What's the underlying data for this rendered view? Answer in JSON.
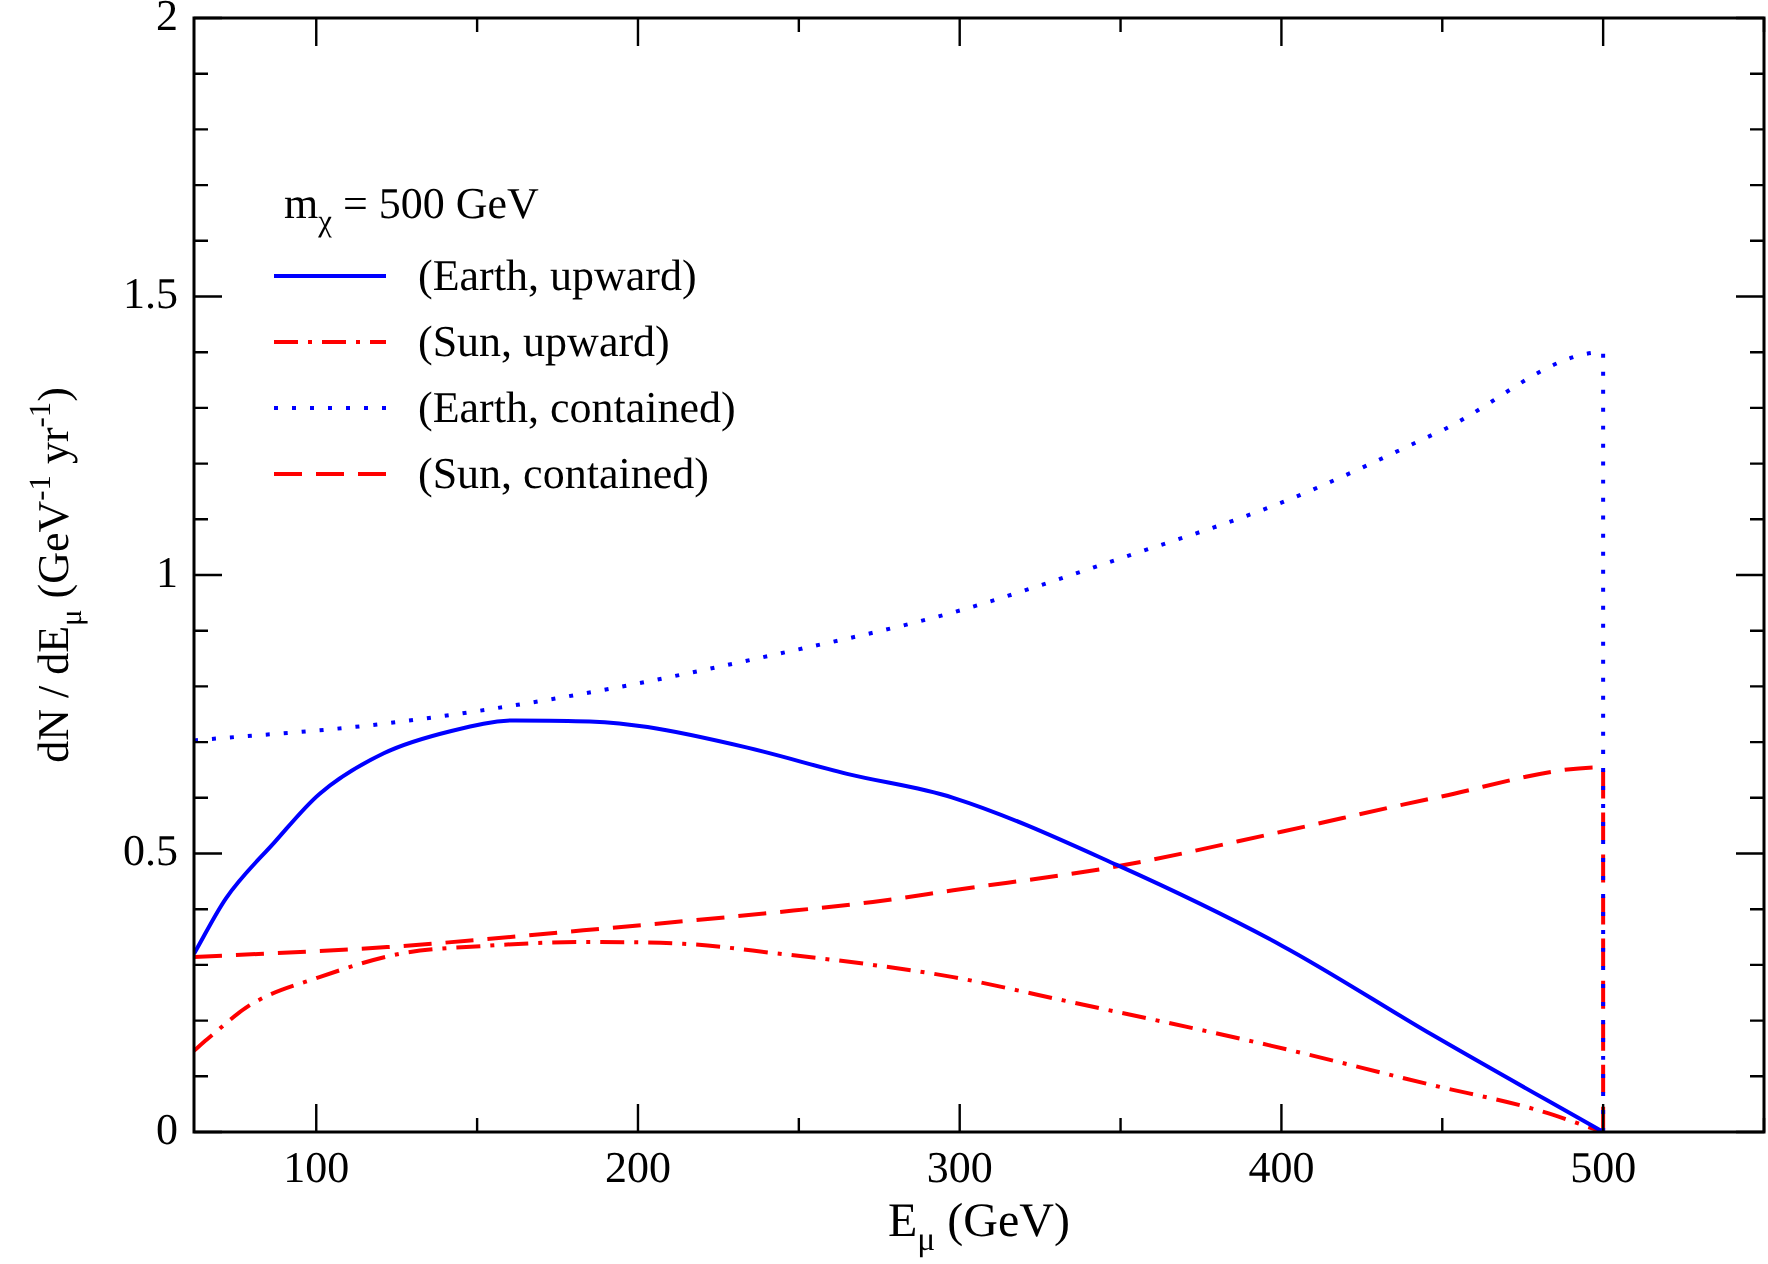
{
  "chart_data": {
    "type": "line",
    "xlabel": "E$_{μ}$ (GeV)",
    "ylabel": "dN / dE$_{μ}$ (GeV$^{-1}$ yr$^{-1}$)",
    "legend_title": "m$_{χ}$ = 500 GeV",
    "legend": "top left",
    "grid": false,
    "marker": "none",
    "xlim": [
      62,
      550
    ],
    "ylim": [
      0,
      2
    ],
    "xticks": [
      100,
      {
        "value": 150,
        "label": null
      },
      200,
      {
        "value": 250,
        "label": null
      },
      300,
      {
        "value": 350,
        "label": null
      },
      400,
      {
        "value": 450,
        "label": null
      },
      500,
      {
        "value": 550,
        "label": null
      }
    ],
    "yticks": [
      0,
      {
        "value": 0.1,
        "label": null
      },
      {
        "value": 0.2,
        "label": null
      },
      {
        "value": 0.3,
        "label": null
      },
      {
        "value": 0.4,
        "label": null
      },
      0.5,
      {
        "value": 0.6,
        "label": null
      },
      {
        "value": 0.7,
        "label": null
      },
      {
        "value": 0.8,
        "label": null
      },
      {
        "value": 0.9,
        "label": null
      },
      1,
      {
        "value": 1.1,
        "label": null
      },
      {
        "value": 1.2,
        "label": null
      },
      {
        "value": 1.3,
        "label": null
      },
      {
        "value": 1.4,
        "label": null
      },
      1.5,
      {
        "value": 1.6,
        "label": null
      },
      {
        "value": 1.7,
        "label": null
      },
      {
        "value": 1.8,
        "label": null
      },
      {
        "value": 1.9,
        "label": null
      },
      2
    ],
    "series": [
      {
        "name": "(Earth, upward)",
        "color": "#0000ff",
        "line_style": "solid",
        "x": [
          62,
          72,
          87,
          101,
          121,
          142,
          162,
          185,
          203,
          234,
          265,
          298,
          349,
          400,
          447,
          500
        ],
        "values": [
          0.32,
          0.42,
          0.52,
          0.607,
          0.68,
          0.72,
          0.739,
          0.737,
          0.727,
          0.69,
          0.643,
          0.6,
          0.479,
          0.335,
          0.174,
          0
        ]
      },
      {
        "name": "(Sun, upward)",
        "color": "#ff0000",
        "line_style": "dashdot",
        "x": [
          62,
          66,
          80,
          101,
          126,
          152,
          183,
          214,
          244,
          273,
          298,
          334,
          396,
          447,
          478,
          500
        ],
        "values": [
          0.146,
          0.166,
          0.23,
          0.278,
          0.32,
          0.334,
          0.341,
          0.338,
          0.32,
          0.3,
          0.278,
          0.234,
          0.156,
          0.084,
          0.042,
          0
        ]
      },
      {
        "name": "(Earth, contained)",
        "color": "#0000ff",
        "line_style": "dotted",
        "x": [
          62,
          121,
          183,
          244,
          298,
          350,
          400,
          450,
          500,
          500
        ],
        "values": [
          0.703,
          0.733,
          0.787,
          0.859,
          0.933,
          1.03,
          1.13,
          1.26,
          1.4,
          0
        ]
      },
      {
        "name": "(Sun, contained)",
        "color": "#ff0000",
        "line_style": "dashed",
        "x": [
          62,
          122,
          183,
          244,
          273,
          298,
          349,
          400,
          447,
          500,
          500
        ],
        "values": [
          0.314,
          0.332,
          0.362,
          0.395,
          0.413,
          0.434,
          0.477,
          0.539,
          0.599,
          0.655,
          0
        ]
      }
    ]
  }
}
